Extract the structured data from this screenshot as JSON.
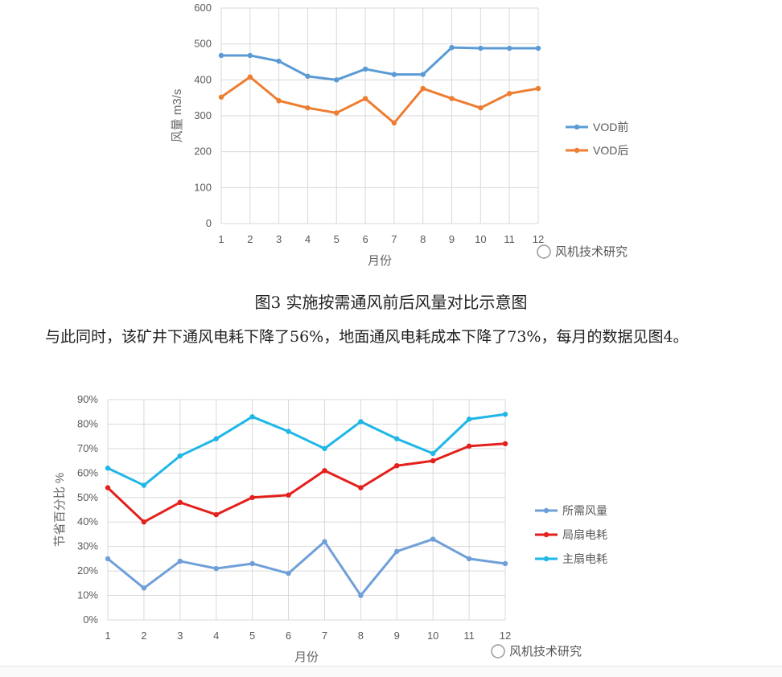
{
  "chart_data": [
    {
      "type": "line",
      "xlabel": "月份",
      "ylabel": "风量 m3/s",
      "x": [
        1,
        2,
        3,
        4,
        5,
        6,
        7,
        8,
        9,
        10,
        11,
        12
      ],
      "ylim": [
        0,
        600
      ],
      "yticks": [
        0,
        100,
        200,
        300,
        400,
        500,
        600
      ],
      "grid": true,
      "legend": "right",
      "series": [
        {
          "name": "VOD前",
          "color": "#5b9bd5",
          "values": [
            468,
            468,
            452,
            410,
            400,
            430,
            415,
            415,
            490,
            488,
            488,
            488
          ]
        },
        {
          "name": "VOD后",
          "color": "#ed7d31",
          "values": [
            352,
            408,
            342,
            322,
            308,
            348,
            280,
            376,
            348,
            322,
            362,
            376
          ]
        }
      ],
      "watermark": "风机技术研究"
    },
    {
      "type": "line",
      "xlabel": "月份",
      "ylabel": "节省百分比 %",
      "x": [
        1,
        2,
        3,
        4,
        5,
        6,
        7,
        8,
        9,
        10,
        11,
        12
      ],
      "ylim": [
        0,
        90
      ],
      "yticks": [
        "0%",
        "10%",
        "20%",
        "30%",
        "40%",
        "50%",
        "60%",
        "70%",
        "80%",
        "90%"
      ],
      "grid": true,
      "legend": "right",
      "series": [
        {
          "name": "所需风量",
          "color": "#6f9fd8",
          "values": [
            25,
            13,
            24,
            21,
            23,
            19,
            32,
            10,
            28,
            33,
            25,
            23
          ]
        },
        {
          "name": "局扇电耗",
          "color": "#e3201b",
          "values": [
            54,
            40,
            48,
            43,
            50,
            51,
            61,
            54,
            63,
            65,
            71,
            72
          ]
        },
        {
          "name": "主扇电耗",
          "color": "#1fb7e6",
          "values": [
            62,
            55,
            67,
            74,
            83,
            77,
            70,
            81,
            74,
            68,
            82,
            84
          ]
        }
      ],
      "watermark": "风机技术研究"
    }
  ],
  "caption": "图3 实施按需通风前后风量对比示意图",
  "paragraph": "与此同时，该矿井下通风电耗下降了56%，地面通风电耗成本下降了73%，每月的数据见图4。"
}
